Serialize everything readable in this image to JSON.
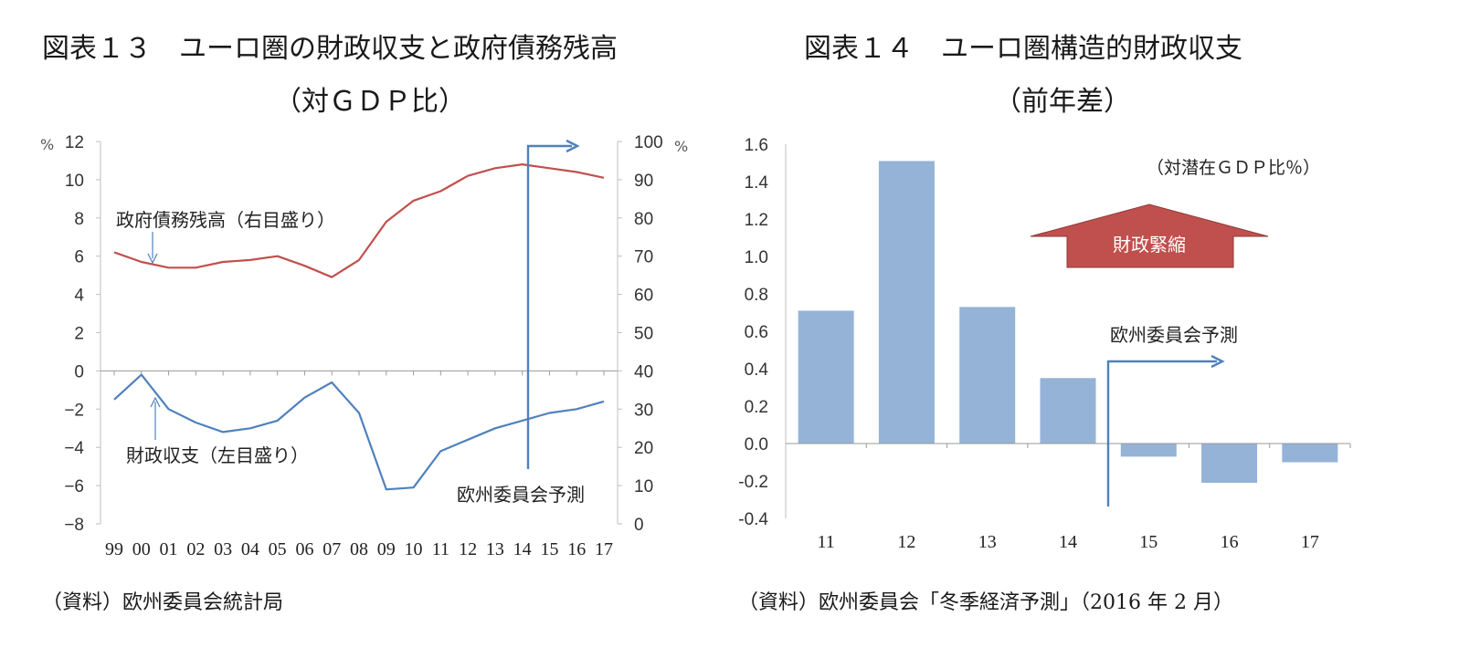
{
  "chart_data": [
    {
      "type": "line",
      "title": "図表１３　ユーロ圏の財政収支と政府債務残高",
      "subtitle": "（対ＧＤＰ比）",
      "categories": [
        "99",
        "00",
        "01",
        "02",
        "03",
        "04",
        "05",
        "06",
        "07",
        "08",
        "09",
        "10",
        "11",
        "12",
        "13",
        "14",
        "15",
        "16",
        "17"
      ],
      "y_left": {
        "ticks": [
          "12",
          "10",
          "8",
          "6",
          "4",
          "2",
          "0",
          "−2",
          "−4",
          "−6",
          "−8"
        ],
        "unit": "%",
        "ylim": [
          -8,
          12
        ]
      },
      "y_right": {
        "ticks": [
          "100",
          "90",
          "80",
          "70",
          "60",
          "50",
          "40",
          "30",
          "20",
          "10",
          "0"
        ],
        "unit": "%",
        "ylim": [
          0,
          100
        ]
      },
      "series": [
        {
          "name": "政府債務残高（右目盛り）",
          "axis": "right",
          "color": "#c0504d",
          "values": [
            71,
            68.5,
            67,
            67,
            68.5,
            69,
            70,
            67.5,
            64.5,
            69,
            79,
            84.5,
            87,
            91,
            93,
            94,
            93,
            92,
            90.5
          ]
        },
        {
          "name": "財政収支（左目盛り）",
          "axis": "left",
          "color": "#4f81bd",
          "values": [
            -1.5,
            -0.2,
            -2.0,
            -2.7,
            -3.2,
            -3.0,
            -2.6,
            -1.4,
            -0.6,
            -2.2,
            -6.2,
            -6.1,
            -4.2,
            -3.6,
            -3.0,
            -2.6,
            -2.2,
            -2.0,
            -1.6
          ]
        }
      ],
      "forecast_label": "欧州委員会予測",
      "source": "（資料）欧州委員会統計局"
    },
    {
      "type": "bar",
      "title": "図表１４　ユーロ圏構造的財政収支",
      "subtitle": "（前年差）",
      "categories": [
        "11",
        "12",
        "13",
        "14",
        "15",
        "16",
        "17"
      ],
      "values": [
        0.71,
        1.51,
        0.73,
        0.35,
        -0.07,
        -0.21,
        -0.1
      ],
      "ylim": [
        -0.4,
        1.6
      ],
      "y_ticks": [
        "1.6",
        "1.4",
        "1.2",
        "1.0",
        "0.8",
        "0.6",
        "0.4",
        "0.2",
        "0.0",
        "-0.2",
        "-0.4"
      ],
      "unit_note": "（対潜在ＧＤＰ比％）",
      "arrow_label": "財政緊縮",
      "forecast_label": "欧州委員会予測",
      "bar_color": "#95b3d7",
      "source": "（資料）欧州委員会「冬季経済予測」（2016 年 2 月）"
    }
  ]
}
